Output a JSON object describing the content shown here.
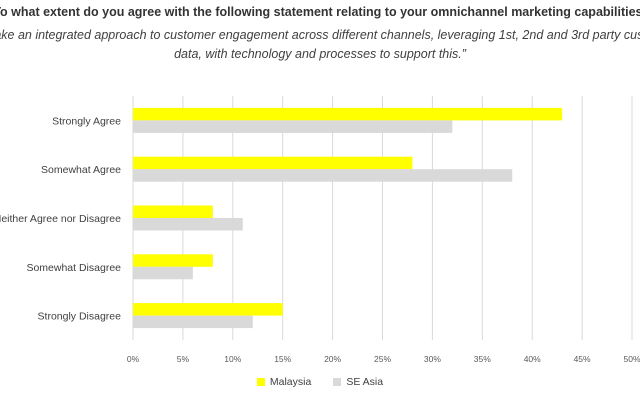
{
  "chart_data": {
    "type": "bar",
    "orientation": "horizontal",
    "title": "To what extent do you agree with the following statement relating to your omnichannel marketing capabilities:",
    "subtitle": "“We take an integrated approach to customer engagement across different channels, leveraging 1st, 2nd and 3rd party customer data, with technology and processes to support this.”",
    "categories": [
      "Strongly Agree",
      "Somewhat Agree",
      "Neither Agree nor Disagree",
      "Somewhat Disagree",
      "Strongly Disagree"
    ],
    "series": [
      {
        "name": "Malaysia",
        "color": "#FFFF00",
        "values": [
          43,
          28,
          8,
          8,
          15
        ]
      },
      {
        "name": "SE Asia",
        "color": "#D9D9D9",
        "values": [
          32,
          38,
          11,
          6,
          12
        ]
      }
    ],
    "xlim": [
      0,
      50
    ],
    "xticks": [
      "0%",
      "5%",
      "10%",
      "15%",
      "20%",
      "25%",
      "30%",
      "35%",
      "40%",
      "45%",
      "50%"
    ],
    "grid": true,
    "legend_position": "bottom"
  }
}
